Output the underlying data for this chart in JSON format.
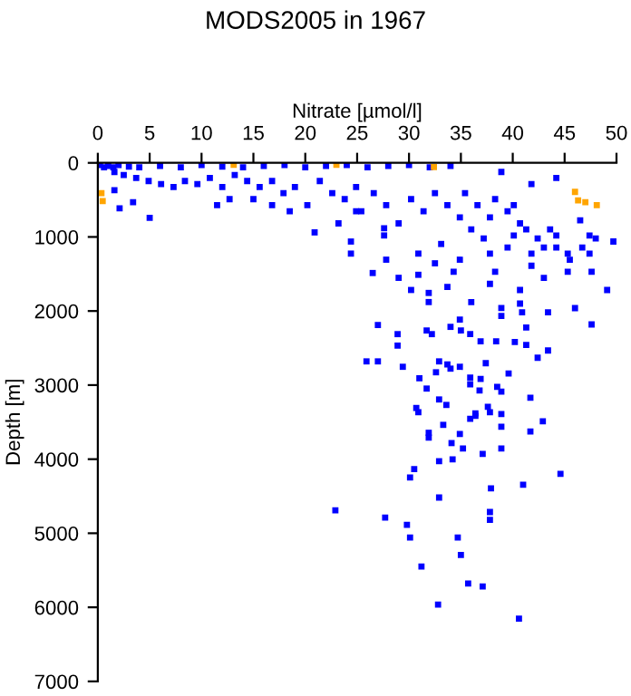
{
  "chart_data": {
    "type": "scatter",
    "title": "MODS2005 in 1967",
    "xlabel": "Nitrate [µmol/l]",
    "ylabel": "Depth [m]",
    "xlim": [
      0,
      50
    ],
    "ylim": [
      7000,
      0
    ],
    "xticks": [
      0,
      5,
      10,
      15,
      20,
      25,
      30,
      35,
      40,
      45,
      50
    ],
    "yticks": [
      0,
      1000,
      2000,
      3000,
      4000,
      5000,
      6000,
      7000
    ],
    "grid": false,
    "marker": "square",
    "series": [
      {
        "color": "#0000ff",
        "x": [
          27.0,
          28.9,
          28.9,
          31.7,
          32.2,
          34.0,
          34.9,
          35.0,
          35.9,
          36.9,
          38.4,
          38.9,
          40.9,
          41.3,
          41.3,
          40.2,
          43.4,
          47.6,
          46.0,
          43.4,
          42.4,
          25.9,
          27.0,
          29.4,
          31.0,
          31.7,
          32.6,
          32.9,
          33.7,
          34.0,
          34.9,
          35.9,
          35.9,
          36.9,
          36.8,
          37.4,
          38.5,
          38.9,
          39.6,
          41.7,
          32.9,
          33.6,
          30.7,
          30.9,
          33.3,
          31.9,
          31.9,
          34.1,
          34.9,
          35.2,
          35.9,
          36.4,
          36.4,
          37.6,
          37.8,
          38.9,
          38.9,
          38.9,
          37.1,
          41.7,
          42.9,
          32.9,
          34.2,
          30.5,
          30.1,
          37.9,
          41.0,
          44.6,
          32.9,
          22.9,
          27.7,
          29.8,
          30.1,
          37.8,
          37.8,
          34.7,
          35.0,
          31.2,
          35.7,
          37.1,
          32.8,
          40.6,
          2.1,
          5.0,
          3.4,
          1.6,
          11.5,
          12.7,
          15.0,
          16.8,
          18.5,
          20.9,
          23.2,
          24.4,
          24.4,
          24.9,
          26.5,
          27.6,
          27.6,
          27.8,
          29.0,
          30.2,
          30.9,
          30.9,
          31.9,
          32.5,
          33.1,
          33.7,
          34.3,
          34.9,
          36.0,
          37.8,
          37.8,
          38.3,
          38.9,
          40.1,
          40.7,
          41.8,
          41.8,
          43.0,
          43.0,
          44.2,
          44.2,
          45.3,
          46.5,
          47.4,
          48.0,
          47.4,
          49.1,
          49.7,
          38.9,
          40.7,
          31.9,
          35.4,
          36.6,
          37.8,
          38.3,
          39.5,
          40.7,
          40.1,
          41.3,
          42.4,
          43.6,
          44.2,
          41.8,
          39.5,
          37.2,
          36.0,
          34.9,
          33.7,
          32.5,
          31.4,
          30.2,
          29.0,
          27.8,
          26.6,
          25.4,
          24.9,
          23.8,
          22.6,
          21.4,
          20.2,
          19.0,
          17.9,
          16.8,
          15.6,
          14.4,
          13.2,
          12.0,
          10.8,
          9.6,
          8.4,
          7.3,
          6.1,
          4.9,
          3.7,
          2.5,
          1.6,
          45.3,
          46.7,
          45.5,
          47.6,
          0.2,
          0.6,
          1.0,
          1.5,
          2.0,
          3.0,
          4.0,
          6.0,
          8.0,
          10.0,
          12.0,
          14.0,
          16.0,
          18.0,
          20.0,
          22.0,
          24.0,
          26.0,
          28.0,
          30.0,
          32.0,
          34.0
        ],
        "values": [
          2189,
          2312,
          2467,
          2263,
          2312,
          2214,
          2116,
          2263,
          2312,
          2410,
          2410,
          2067,
          2018,
          2222,
          2459,
          2418,
          2018,
          2181,
          1961,
          2533,
          2631,
          2680,
          2680,
          2753,
          2908,
          3047,
          2827,
          2680,
          2721,
          2778,
          2753,
          2900,
          2990,
          2917,
          3072,
          2704,
          3023,
          3088,
          2843,
          3170,
          3194,
          3268,
          3309,
          3366,
          3537,
          3644,
          3709,
          3783,
          3660,
          3856,
          3456,
          3382,
          3415,
          3292,
          3366,
          3391,
          3562,
          3856,
          3930,
          3627,
          3488,
          4028,
          4003,
          4134,
          4248,
          4395,
          4346,
          4199,
          4518,
          4690,
          4788,
          4886,
          5057,
          4714,
          4820,
          5057,
          5294,
          5449,
          5678,
          5719,
          5964,
          6152,
          613,
          743,
          531,
          368,
          572,
          490,
          490,
          572,
          653,
          939,
          817,
          1062,
          1225,
          653,
          1487,
          882,
          980,
          1307,
          1552,
          1716,
          1225,
          1511,
          1756,
          1356,
          1095,
          1675,
          1470,
          1307,
          1879,
          1634,
          1225,
          1470,
          123,
          980,
          1716,
          286,
          1225,
          1144,
          1552,
          204,
          980,
          1470,
          776,
          980,
          1020,
          1225,
          1716,
          1062,
          1960,
          1900,
          1879,
          408,
          572,
          735,
          490,
          653,
          817,
          572,
          898,
          1020,
          898,
          1144,
          1389,
          1144,
          1020,
          898,
          735,
          572,
          408,
          653,
          490,
          817,
          572,
          408,
          653,
          327,
          490,
          408,
          245,
          572,
          327,
          408,
          245,
          327,
          245,
          163,
          327,
          204,
          286,
          245,
          327,
          286,
          245,
          204,
          163,
          123,
          1225,
          1144,
          1307,
          1470,
          30,
          60,
          40,
          60,
          30,
          50,
          60,
          40,
          60,
          30,
          50,
          60,
          40,
          30,
          60,
          40,
          30,
          60,
          40,
          30,
          60,
          40
        ]
      },
      {
        "color": "#ffa500",
        "x": [
          0.35,
          0.47,
          13.1,
          23.0,
          32.4,
          46.0,
          46.3,
          47.0,
          48.1
        ],
        "values": [
          409,
          515,
          25,
          25,
          57,
          392,
          507,
          530,
          571
        ]
      }
    ]
  }
}
